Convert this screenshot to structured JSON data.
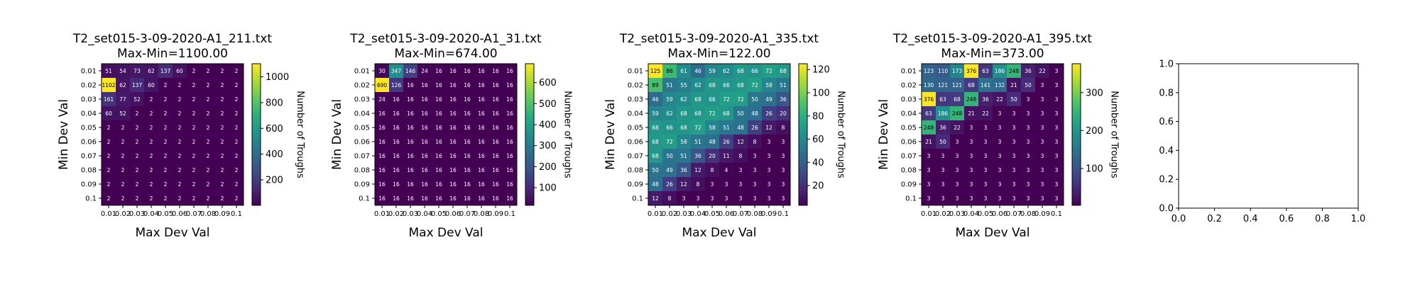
{
  "chart_data": [
    {
      "type": "heatmap",
      "title": "T2_set015-3-09-2020-A1_211.txt",
      "subtitle": "Max-Min=1100.00",
      "xlabel": "Max Dev Val",
      "ylabel": "Min Dev Val",
      "x_ticks": [
        "0.01",
        "0.02",
        "0.03",
        "0.04",
        "0.05",
        "0.06",
        "0.07",
        "0.08",
        "0.09",
        "0.1"
      ],
      "y_ticks": [
        "0.01",
        "0.02",
        "0.03",
        "0.04",
        "0.05",
        "0.06",
        "0.07",
        "0.08",
        "0.09",
        "0.1"
      ],
      "colorbar_label": "Number of Troughs",
      "colorbar_ticks": [
        200,
        400,
        600,
        800,
        1000
      ],
      "vmin": 2,
      "vmax": 1102,
      "colormap": "viridis",
      "values": [
        [
          51,
          54,
          73,
          62,
          137,
          60,
          2,
          2,
          2,
          2
        ],
        [
          1102,
          62,
          137,
          60,
          2,
          2,
          2,
          2,
          2,
          2
        ],
        [
          161,
          77,
          52,
          2,
          2,
          2,
          2,
          2,
          2,
          2
        ],
        [
          60,
          52,
          2,
          2,
          2,
          2,
          2,
          2,
          2,
          2
        ],
        [
          2,
          2,
          2,
          2,
          2,
          2,
          2,
          2,
          2,
          2
        ],
        [
          2,
          2,
          2,
          2,
          2,
          2,
          2,
          2,
          2,
          2
        ],
        [
          2,
          2,
          2,
          2,
          2,
          2,
          2,
          2,
          2,
          2
        ],
        [
          2,
          2,
          2,
          2,
          2,
          2,
          2,
          2,
          2,
          2
        ],
        [
          2,
          2,
          2,
          2,
          2,
          2,
          2,
          2,
          2,
          2
        ],
        [
          2,
          2,
          2,
          2,
          2,
          2,
          2,
          2,
          2,
          2
        ]
      ]
    },
    {
      "type": "heatmap",
      "title": "T2_set015-3-09-2020-A1_31.txt",
      "subtitle": "Max-Min=674.00",
      "xlabel": "Max Dev Val",
      "ylabel": "Min Dev Val",
      "x_ticks": [
        "0.01",
        "0.02",
        "0.03",
        "0.04",
        "0.05",
        "0.06",
        "0.07",
        "0.08",
        "0.09",
        "0.1"
      ],
      "y_ticks": [
        "0.01",
        "0.02",
        "0.03",
        "0.04",
        "0.05",
        "0.06",
        "0.07",
        "0.08",
        "0.09",
        "0.1"
      ],
      "colorbar_label": "Number of Troughs",
      "colorbar_ticks": [
        100,
        200,
        300,
        400,
        500,
        600
      ],
      "vmin": 16,
      "vmax": 690,
      "colormap": "viridis",
      "values": [
        [
          30,
          347,
          146,
          24,
          16,
          16,
          16,
          16,
          16,
          16
        ],
        [
          690,
          126,
          16,
          16,
          16,
          16,
          16,
          16,
          16,
          16
        ],
        [
          24,
          16,
          16,
          16,
          16,
          16,
          16,
          16,
          16,
          16
        ],
        [
          16,
          16,
          16,
          16,
          16,
          16,
          16,
          16,
          16,
          16
        ],
        [
          16,
          16,
          16,
          16,
          16,
          16,
          16,
          16,
          16,
          16
        ],
        [
          16,
          16,
          16,
          16,
          16,
          16,
          16,
          16,
          16,
          16
        ],
        [
          16,
          16,
          16,
          16,
          16,
          16,
          16,
          16,
          16,
          16
        ],
        [
          16,
          16,
          16,
          16,
          16,
          16,
          16,
          16,
          16,
          16
        ],
        [
          16,
          16,
          16,
          16,
          16,
          16,
          16,
          16,
          16,
          16
        ],
        [
          16,
          16,
          16,
          16,
          16,
          16,
          16,
          16,
          16,
          16
        ]
      ]
    },
    {
      "type": "heatmap",
      "title": "T2_set015-3-09-2020-A1_335.txt",
      "subtitle": "Max-Min=122.00",
      "xlabel": "Max Dev Val",
      "ylabel": "Min Dev Val",
      "x_ticks": [
        "0.01",
        "0.02",
        "0.03",
        "0.04",
        "0.05",
        "0.06",
        "0.07",
        "0.08",
        "0.09",
        "0.1"
      ],
      "y_ticks": [
        "0.01",
        "0.02",
        "0.03",
        "0.04",
        "0.05",
        "0.06",
        "0.07",
        "0.08",
        "0.09",
        "0.1"
      ],
      "colorbar_label": "Number of Troughs",
      "colorbar_ticks": [
        20,
        40,
        60,
        80,
        100,
        120
      ],
      "vmin": 3,
      "vmax": 125,
      "colormap": "viridis",
      "values": [
        [
          125,
          86,
          61,
          46,
          59,
          62,
          68,
          66,
          72,
          68
        ],
        [
          89,
          51,
          55,
          62,
          68,
          66,
          68,
          72,
          58,
          51
        ],
        [
          46,
          59,
          62,
          68,
          66,
          72,
          72,
          50,
          49,
          36
        ],
        [
          59,
          62,
          68,
          68,
          72,
          68,
          50,
          48,
          26,
          20
        ],
        [
          68,
          66,
          68,
          72,
          58,
          51,
          48,
          26,
          12,
          8
        ],
        [
          68,
          72,
          58,
          51,
          48,
          26,
          12,
          8,
          3,
          3
        ],
        [
          68,
          50,
          51,
          36,
          20,
          11,
          8,
          3,
          3,
          3
        ],
        [
          50,
          49,
          36,
          12,
          8,
          4,
          3,
          3,
          3,
          3
        ],
        [
          48,
          26,
          12,
          8,
          3,
          3,
          3,
          3,
          3,
          3
        ],
        [
          12,
          8,
          3,
          3,
          3,
          3,
          3,
          3,
          3,
          3
        ]
      ]
    },
    {
      "type": "heatmap",
      "title": "T2_set015-3-09-2020-A1_395.txt",
      "subtitle": "Max-Min=373.00",
      "xlabel": "Max Dev Val",
      "ylabel": "Min Dev Val",
      "x_ticks": [
        "0.01",
        "0.02",
        "0.03",
        "0.04",
        "0.05",
        "0.06",
        "0.07",
        "0.08",
        "0.09",
        "0.1"
      ],
      "y_ticks": [
        "0.01",
        "0.02",
        "0.03",
        "0.04",
        "0.05",
        "0.06",
        "0.07",
        "0.08",
        "0.09",
        "0.1"
      ],
      "colorbar_label": "Number of Troughs",
      "colorbar_ticks": [
        100,
        200,
        300
      ],
      "vmin": 3,
      "vmax": 376,
      "colormap": "viridis",
      "values": [
        [
          123,
          110,
          173,
          376,
          63,
          186,
          248,
          36,
          22,
          3
        ],
        [
          130,
          121,
          121,
          68,
          141,
          132,
          21,
          50,
          3,
          3
        ],
        [
          376,
          63,
          68,
          248,
          36,
          22,
          50,
          3,
          3,
          3
        ],
        [
          63,
          186,
          248,
          21,
          22,
          3,
          3,
          3,
          3,
          3
        ],
        [
          248,
          36,
          22,
          3,
          3,
          3,
          3,
          3,
          3,
          3
        ],
        [
          21,
          50,
          3,
          3,
          3,
          3,
          3,
          3,
          3,
          3
        ],
        [
          3,
          3,
          3,
          3,
          3,
          3,
          3,
          3,
          3,
          3
        ],
        [
          3,
          3,
          3,
          3,
          3,
          3,
          3,
          3,
          3,
          3
        ],
        [
          3,
          3,
          3,
          3,
          3,
          3,
          3,
          3,
          3,
          3
        ],
        [
          3,
          3,
          3,
          3,
          3,
          3,
          3,
          3,
          3,
          3
        ]
      ]
    },
    {
      "type": "empty-axes",
      "x_ticks": [
        "0.0",
        "0.2",
        "0.4",
        "0.6",
        "0.8",
        "1.0"
      ],
      "y_ticks": [
        "0.0",
        "0.2",
        "0.4",
        "0.6",
        "0.8",
        "1.0"
      ],
      "xlim": [
        0,
        1
      ],
      "ylim": [
        0,
        1
      ]
    }
  ]
}
